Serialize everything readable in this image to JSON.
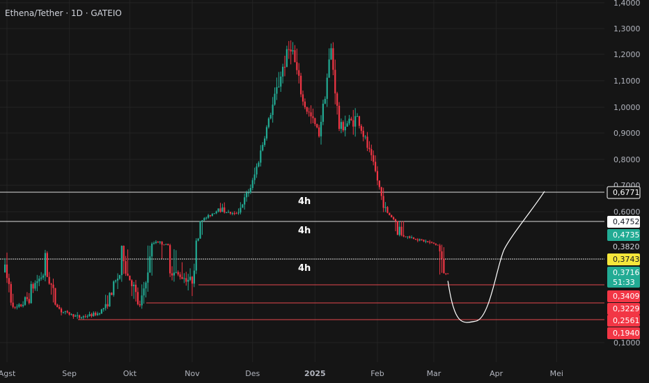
{
  "header": {
    "title": "Ethena/Tether · 1D · GATEIO"
  },
  "colors": {
    "background": "#151515",
    "grid": "#232323",
    "up": "#22ab94",
    "down": "#f23645",
    "white_line": "#dcdcdc",
    "support_line": "#e5484d",
    "tag_white_bg": "#ffffff",
    "tag_green_bg": "#22ab94",
    "tag_yellow_bg": "#f5e63b",
    "tag_red_bg": "#f23645"
  },
  "chart_data": {
    "type": "candlestick",
    "y_axis": {
      "ticks": [
        "1,4000",
        "1,3000",
        "1,2000",
        "1,1000",
        "1,0000",
        "0,9000",
        "0,8000",
        "0,7000",
        "0,6000",
        "0,1000"
      ],
      "tick_values": [
        1.4,
        1.3,
        1.2,
        1.1,
        1.0,
        0.9,
        0.8,
        0.7,
        0.6,
        0.1
      ]
    },
    "x_axis": {
      "ticks": [
        "Agst",
        "Sep",
        "Okt",
        "Nov",
        "Des",
        "2025",
        "Feb",
        "Mar",
        "Apr",
        "Mei"
      ]
    },
    "price_keypoints": [
      {
        "date": "2024-07-31",
        "close": 0.37
      },
      {
        "date": "2024-08-05",
        "close": 0.3
      },
      {
        "date": "2024-08-14",
        "close": 0.34
      },
      {
        "date": "2024-08-20",
        "close": 0.37
      },
      {
        "date": "2024-08-28",
        "close": 0.29
      },
      {
        "date": "2024-09-06",
        "close": 0.265
      },
      {
        "date": "2024-09-15",
        "close": 0.28
      },
      {
        "date": "2024-09-28",
        "close": 0.38
      },
      {
        "date": "2024-10-06",
        "close": 0.31
      },
      {
        "date": "2024-10-14",
        "close": 0.42
      },
      {
        "date": "2024-10-22",
        "close": 0.37
      },
      {
        "date": "2024-11-01",
        "close": 0.35
      },
      {
        "date": "2024-11-05",
        "close": 0.48
      },
      {
        "date": "2024-11-14",
        "close": 0.62
      },
      {
        "date": "2024-11-22",
        "close": 0.57
      },
      {
        "date": "2024-12-01",
        "close": 0.71
      },
      {
        "date": "2024-12-08",
        "close": 0.92
      },
      {
        "date": "2024-12-16",
        "close": 1.15
      },
      {
        "date": "2024-12-20",
        "close": 1.24
      },
      {
        "date": "2024-12-26",
        "close": 1.02
      },
      {
        "date": "2025-01-03",
        "close": 0.9
      },
      {
        "date": "2025-01-09",
        "close": 1.22
      },
      {
        "date": "2025-01-13",
        "close": 0.92
      },
      {
        "date": "2025-01-22",
        "close": 0.96
      },
      {
        "date": "2025-01-30",
        "close": 0.78
      },
      {
        "date": "2025-02-03",
        "close": 0.66
      },
      {
        "date": "2025-02-10",
        "close": 0.48
      },
      {
        "date": "2025-02-20",
        "close": 0.44
      },
      {
        "date": "2025-03-01",
        "close": 0.4
      },
      {
        "date": "2025-03-05",
        "close": 0.37
      },
      {
        "date": "2025-03-08",
        "close": 0.3716
      }
    ],
    "horizontal_levels": [
      {
        "value": 0.6771,
        "style": "white",
        "zone_label": "4h"
      },
      {
        "value": 0.4752,
        "style": "white",
        "zone_label": "4h"
      },
      {
        "value": 0.3743,
        "style": "white-dotted",
        "zone_label": "4h"
      },
      {
        "value": 0.3409,
        "style": "red"
      },
      {
        "value": 0.3229,
        "style": "red"
      },
      {
        "value": 0.2561,
        "style": "red"
      }
    ],
    "projection": {
      "description_points": [
        {
          "date": "2025-03-08",
          "value": 0.35
        },
        {
          "date": "2025-03-22",
          "value": 0.25
        },
        {
          "date": "2025-04-05",
          "value": 0.38
        },
        {
          "date": "2025-04-25",
          "value": 0.68
        }
      ]
    },
    "price_tags": [
      {
        "label": "0,6771",
        "kind": "white"
      },
      {
        "label": "0,4752",
        "kind": "white"
      },
      {
        "label": "0,4735",
        "kind": "green"
      },
      {
        "label": "0,3820",
        "kind": "plain"
      },
      {
        "label": "0,3743",
        "kind": "yellow"
      },
      {
        "label": "0,3716",
        "kind": "green",
        "sub": "51:33"
      },
      {
        "label": "0,3409",
        "kind": "red"
      },
      {
        "label": "0,3229",
        "kind": "red"
      },
      {
        "label": "0,2561",
        "kind": "red"
      },
      {
        "label": "0,1940",
        "kind": "red"
      }
    ]
  }
}
